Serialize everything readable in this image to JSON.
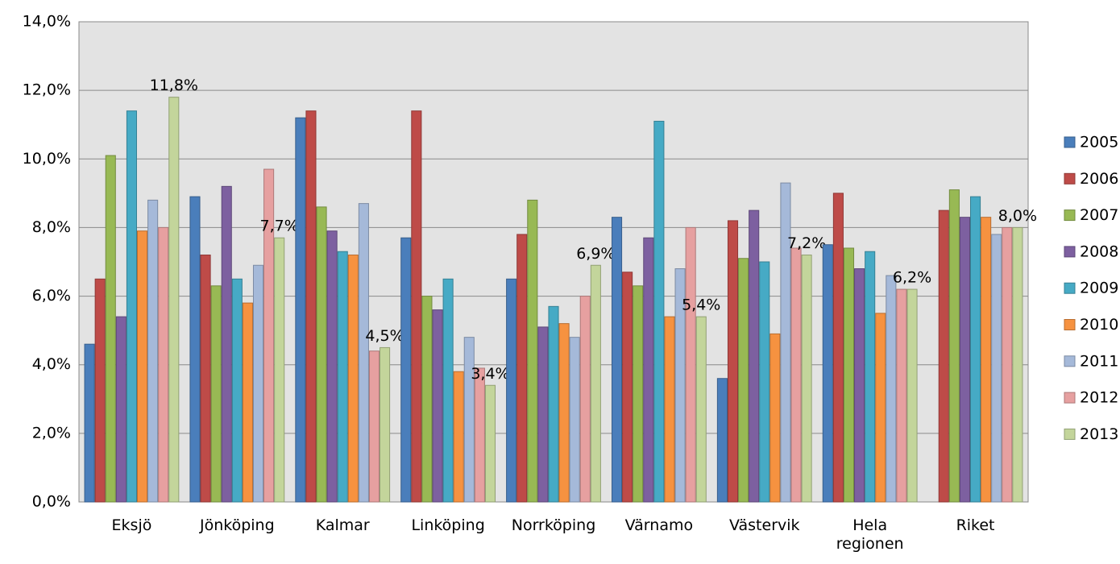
{
  "chart_data": {
    "type": "bar",
    "categories": [
      "Eksjö",
      "Jönköping",
      "Kalmar",
      "Linköping",
      "Norrköping",
      "Värnamo",
      "Västervik",
      "Hela regionen",
      "Riket"
    ],
    "series": [
      {
        "name": "2005",
        "color": "#4a7ebb",
        "values": [
          4.6,
          8.9,
          11.2,
          7.7,
          6.5,
          8.3,
          3.6,
          7.5,
          null
        ]
      },
      {
        "name": "2006",
        "color": "#be4b48",
        "values": [
          6.5,
          7.2,
          11.4,
          11.4,
          7.8,
          6.7,
          8.2,
          9.0,
          8.5
        ]
      },
      {
        "name": "2007",
        "color": "#98b954",
        "values": [
          10.1,
          6.3,
          8.6,
          6.0,
          8.8,
          6.3,
          7.1,
          7.4,
          9.1
        ]
      },
      {
        "name": "2008",
        "color": "#7d60a0",
        "values": [
          5.4,
          9.2,
          7.9,
          5.6,
          5.1,
          7.7,
          8.5,
          6.8,
          8.3
        ]
      },
      {
        "name": "2009",
        "color": "#46aac5",
        "values": [
          11.4,
          6.5,
          7.3,
          6.5,
          5.7,
          11.1,
          7.0,
          7.3,
          8.9
        ]
      },
      {
        "name": "2010",
        "color": "#f69240",
        "values": [
          7.9,
          5.8,
          7.2,
          3.8,
          5.2,
          5.4,
          4.9,
          5.5,
          8.3
        ]
      },
      {
        "name": "2011",
        "color": "#a5b9d9",
        "values": [
          8.8,
          6.9,
          8.7,
          4.8,
          4.8,
          6.8,
          9.3,
          6.6,
          7.8
        ]
      },
      {
        "name": "2012",
        "color": "#e6a0a0",
        "values": [
          8.0,
          9.7,
          4.4,
          3.9,
          6.0,
          8.0,
          7.4,
          6.2,
          8.0
        ]
      },
      {
        "name": "2013",
        "color": "#c3d59b",
        "values": [
          11.8,
          7.7,
          4.5,
          3.4,
          6.9,
          5.4,
          7.2,
          6.2,
          8.0
        ],
        "value_labels": [
          "11,8%",
          "7,7%",
          "4,5%",
          "3,4%",
          "6,9%",
          "5,4%",
          "7,2%",
          "6,2%",
          "8,0%"
        ]
      }
    ],
    "ylim": [
      0,
      14
    ],
    "yticks": [
      {
        "value": 0,
        "label": "0,0%"
      },
      {
        "value": 2,
        "label": "2,0%"
      },
      {
        "value": 4,
        "label": "4,0%"
      },
      {
        "value": 6,
        "label": "6,0%"
      },
      {
        "value": 8,
        "label": "8,0%"
      },
      {
        "value": 10,
        "label": "10,0%"
      },
      {
        "value": 12,
        "label": "12,0%"
      },
      {
        "value": 14,
        "label": "14,0%"
      }
    ],
    "grid": true,
    "legend": "right"
  }
}
